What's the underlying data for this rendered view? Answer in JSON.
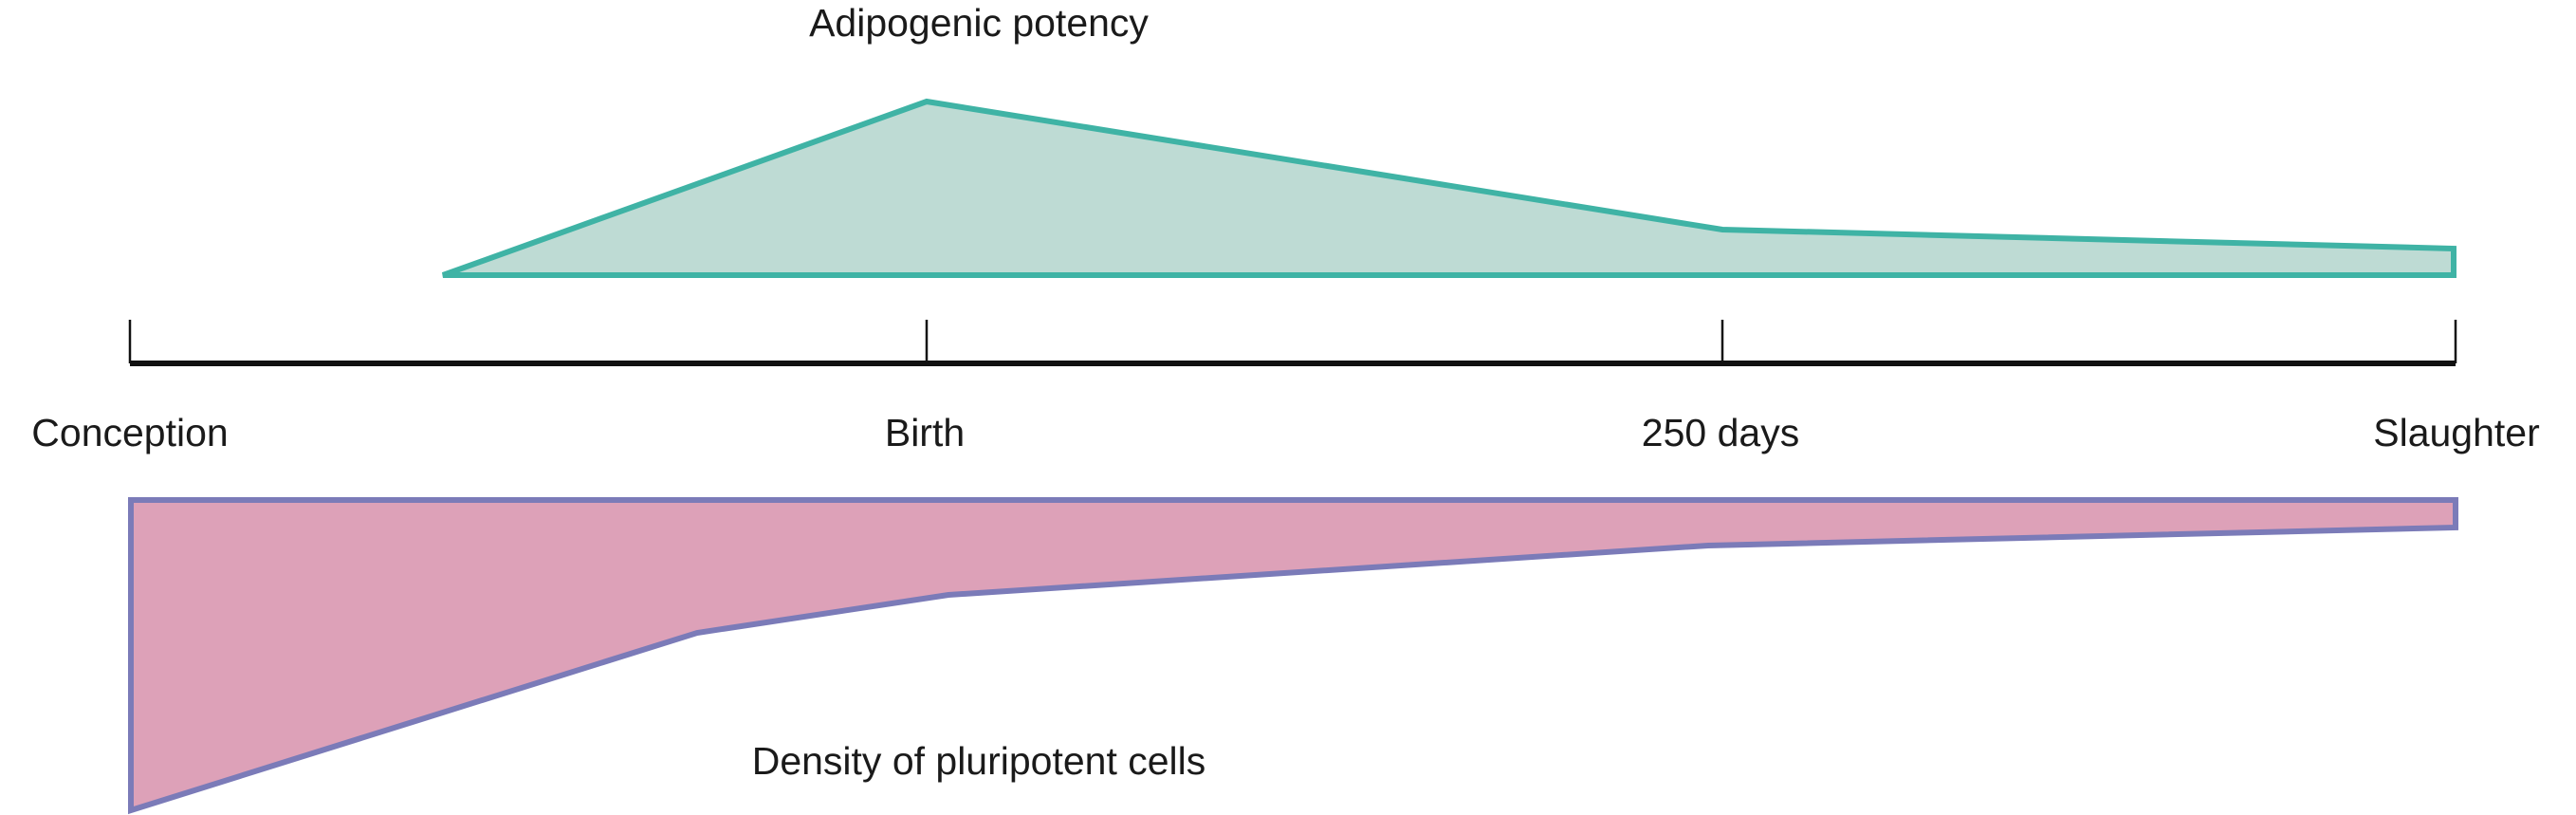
{
  "diagram": {
    "top_area": {
      "label": "Adipogenic potency",
      "fill_color": "#bedbd4",
      "stroke_color": "#3fb3a5"
    },
    "bottom_area": {
      "label": "Density of pluripotent cells",
      "fill_color": "#dda1b8",
      "stroke_color": "#7b7bb8"
    },
    "axis": {
      "color": "#111111",
      "ticks": [
        {
          "label": "Conception"
        },
        {
          "label": "Birth"
        },
        {
          "label": "250 days"
        },
        {
          "label": "Slaughter"
        }
      ]
    }
  }
}
